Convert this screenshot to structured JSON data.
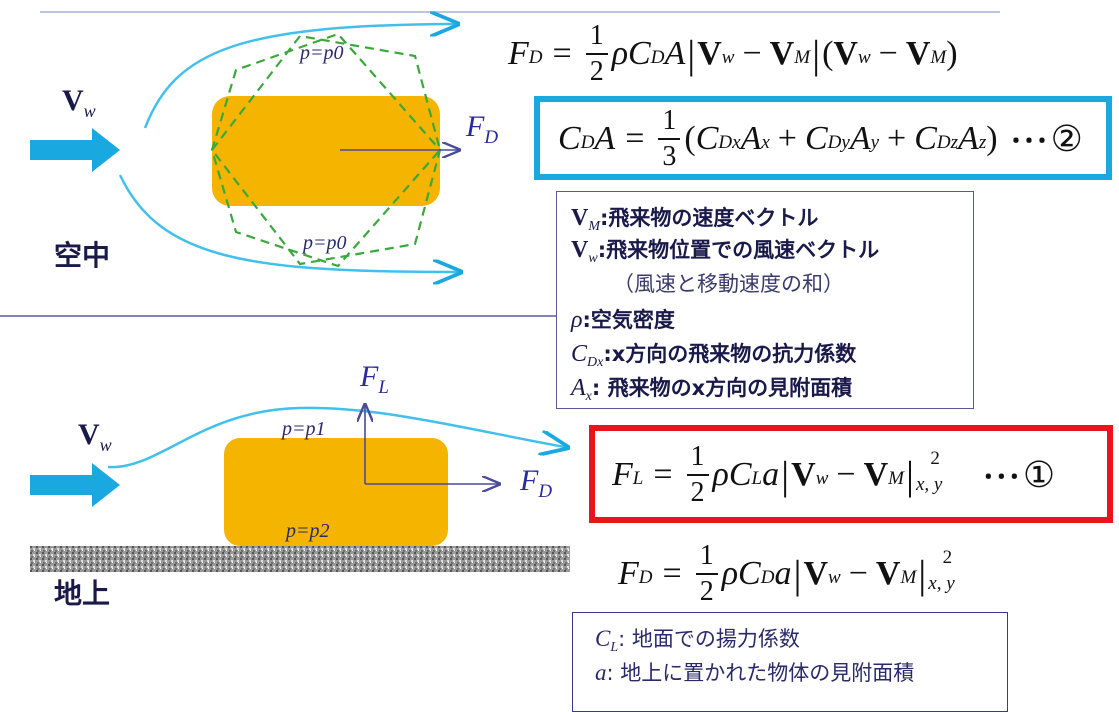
{
  "section_labels": {
    "air": "空中",
    "ground": "地上"
  },
  "flow": {
    "wind_symbol": "V",
    "wind_sub": "w",
    "p_upper_air": "p=p0",
    "p_lower_air": "p=p0",
    "p_upper_ground": "p=p1",
    "p_lower_ground": "p=p2"
  },
  "forces": {
    "drag": "F",
    "drag_sub": "D",
    "lift": "F",
    "lift_sub": "L"
  },
  "equations": {
    "drag_air": {
      "lhs": "F",
      "lhs_sub": "D",
      "coef": "ρC",
      "coef_sub": "D",
      "area": "A"
    },
    "cda": {
      "lhs": "C",
      "lhs_sub": "D",
      "lhs_area": "A",
      "tail": "･･･",
      "marker": "②"
    },
    "lift_ground": {
      "lhs": "F",
      "lhs_sub": "L",
      "coef": "ρC",
      "coef_sub": "L",
      "area": "a",
      "tail": "･･･",
      "marker": "①"
    },
    "drag_ground": {
      "lhs": "F",
      "lhs_sub": "D",
      "coef": "ρC",
      "coef_sub": "D",
      "area": "a"
    }
  },
  "legend_air": [
    {
      "sym": "V",
      "sub": "M",
      "text": ":飛来物の速度ベクトル"
    },
    {
      "sym": "V",
      "sub": "w",
      "text": ":飛来物位置での風速ベクトル"
    },
    {
      "sym": "",
      "sub": "",
      "text": "（風速と移動速度の和）"
    },
    {
      "sym": "ρ",
      "sub": "",
      "text": ":空気密度"
    },
    {
      "sym": "C",
      "sub": "Dx",
      "text": ":x方向の飛来物の抗力係数"
    },
    {
      "sym": "A",
      "sub": "x",
      "text": ": 飛来物のx方向の見附面積"
    }
  ],
  "legend_ground": [
    {
      "sym": "C",
      "sub": "L",
      "text": ": 地面での揚力係数"
    },
    {
      "sym": "a",
      "sub": "",
      "text": ": 地上に置かれた物体の見附面積"
    }
  ],
  "colors": {
    "arrow": "#1aa8e0",
    "body": "#f5b400",
    "dashed": "#3aa83a",
    "blue_box": "#1aa8e0",
    "red_box": "#e8141e",
    "divider": "#5a5a9a"
  }
}
